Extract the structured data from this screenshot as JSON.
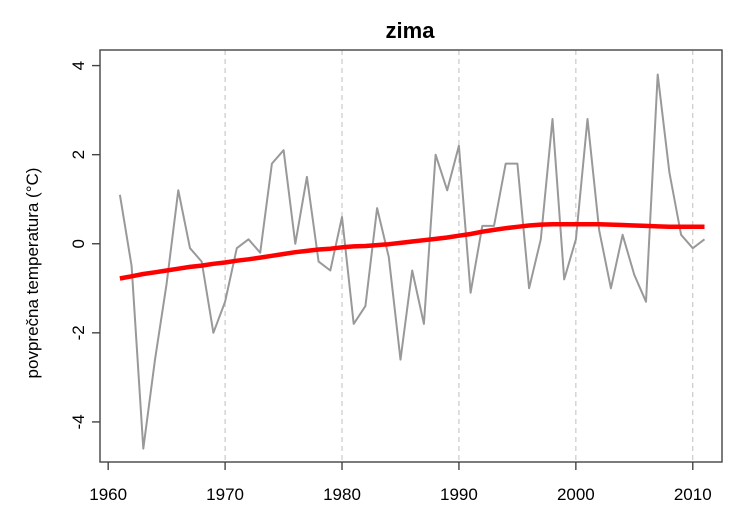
{
  "chart_data": {
    "type": "line",
    "title": "zima",
    "xlabel": "",
    "ylabel": "povprečna temperatura (°C)",
    "xlim": [
      1959.3,
      2012.5
    ],
    "ylim": [
      -4.9,
      4.35
    ],
    "x_ticks": [
      1960,
      1970,
      1980,
      1990,
      2000,
      2010
    ],
    "y_ticks": [
      -4,
      -2,
      0,
      2,
      4
    ],
    "grid": "vertical dashed at x ticks 1970-2010",
    "legend": "none",
    "x": [
      1961,
      1962,
      1963,
      1964,
      1965,
      1966,
      1967,
      1968,
      1969,
      1970,
      1971,
      1972,
      1973,
      1974,
      1975,
      1976,
      1977,
      1978,
      1979,
      1980,
      1981,
      1982,
      1983,
      1984,
      1985,
      1986,
      1987,
      1988,
      1989,
      1990,
      1991,
      1992,
      1993,
      1994,
      1995,
      1996,
      1997,
      1998,
      1999,
      2000,
      2001,
      2002,
      2003,
      2004,
      2005,
      2006,
      2007,
      2008,
      2009,
      2010,
      2011
    ],
    "series": [
      {
        "color": "#999999",
        "values": [
          1.1,
          -0.5,
          -4.6,
          -2.6,
          -0.9,
          1.2,
          -0.1,
          -0.4,
          -2.0,
          -1.3,
          -0.1,
          0.1,
          -0.2,
          1.8,
          2.1,
          0.0,
          1.5,
          -0.4,
          -0.6,
          0.6,
          -1.8,
          -1.4,
          0.8,
          -0.3,
          -2.6,
          -0.6,
          -1.8,
          2.0,
          1.2,
          2.2,
          -1.1,
          0.4,
          0.4,
          1.8,
          1.8,
          -1.0,
          0.1,
          2.8,
          -0.8,
          0.1,
          2.8,
          0.3,
          -1.0,
          0.2,
          -0.7,
          -1.3,
          3.8,
          1.6,
          0.2,
          -0.1,
          0.1
        ]
      },
      {
        "color": "#ff0000",
        "values": [
          -0.78,
          -0.73,
          -0.68,
          -0.64,
          -0.6,
          -0.56,
          -0.52,
          -0.49,
          -0.45,
          -0.42,
          -0.38,
          -0.35,
          -0.31,
          -0.27,
          -0.23,
          -0.19,
          -0.16,
          -0.13,
          -0.11,
          -0.08,
          -0.06,
          -0.05,
          -0.03,
          -0.01,
          0.02,
          0.05,
          0.08,
          0.11,
          0.14,
          0.18,
          0.22,
          0.27,
          0.31,
          0.35,
          0.38,
          0.41,
          0.43,
          0.44,
          0.44,
          0.44,
          0.44,
          0.44,
          0.43,
          0.42,
          0.41,
          0.4,
          0.39,
          0.38,
          0.38,
          0.38,
          0.38
        ]
      }
    ]
  }
}
